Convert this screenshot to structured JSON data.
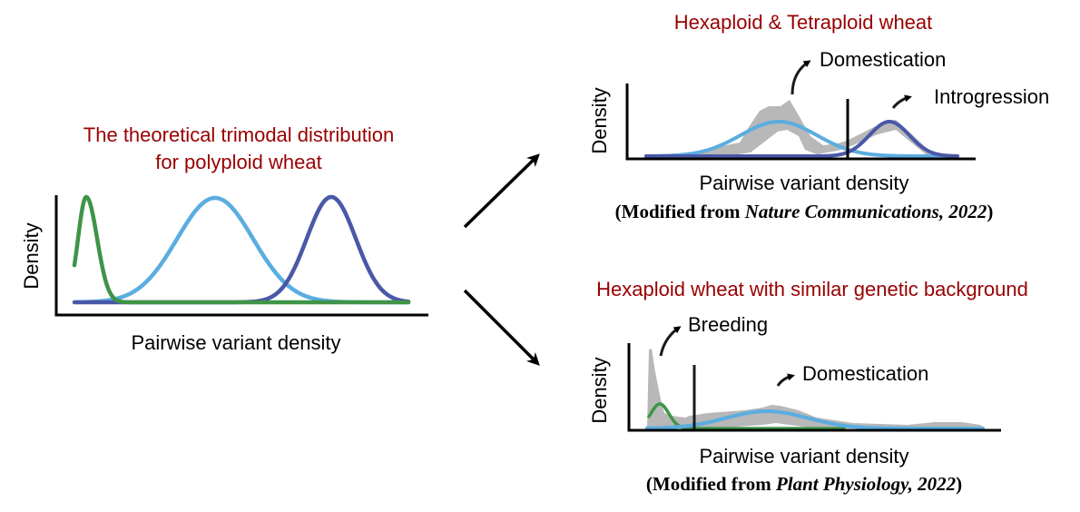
{
  "colors": {
    "title": "#990000",
    "green": "#3f9447",
    "light_blue": "#5aade0",
    "dark_blue": "#4a58a8",
    "band": "#b8b8b8",
    "axis": "#000000"
  },
  "left_panel": {
    "title_line1": "The theoretical trimodal distribution",
    "title_line2": "for polyploid wheat",
    "ylabel": "Density",
    "xlabel": "Pairwise variant density"
  },
  "top_panel": {
    "title": "Hexaploid & Tetraploid wheat",
    "ylabel": "Density",
    "xlabel": "Pairwise variant density",
    "annotation_1": "Domestication",
    "annotation_2": "Introgression",
    "citation_prefix": "(Modified from ",
    "citation_journal": "Nature Communications, 2022",
    "citation_suffix": ")"
  },
  "bottom_panel": {
    "title": "Hexaploid wheat with similar genetic background",
    "ylabel": "Density",
    "xlabel": "Pairwise variant density",
    "annotation_1": "Breeding",
    "annotation_2": "Domestication",
    "citation_prefix": "(Modified from ",
    "citation_journal": "Plant Physiology, 2022",
    "citation_suffix": ")"
  }
}
